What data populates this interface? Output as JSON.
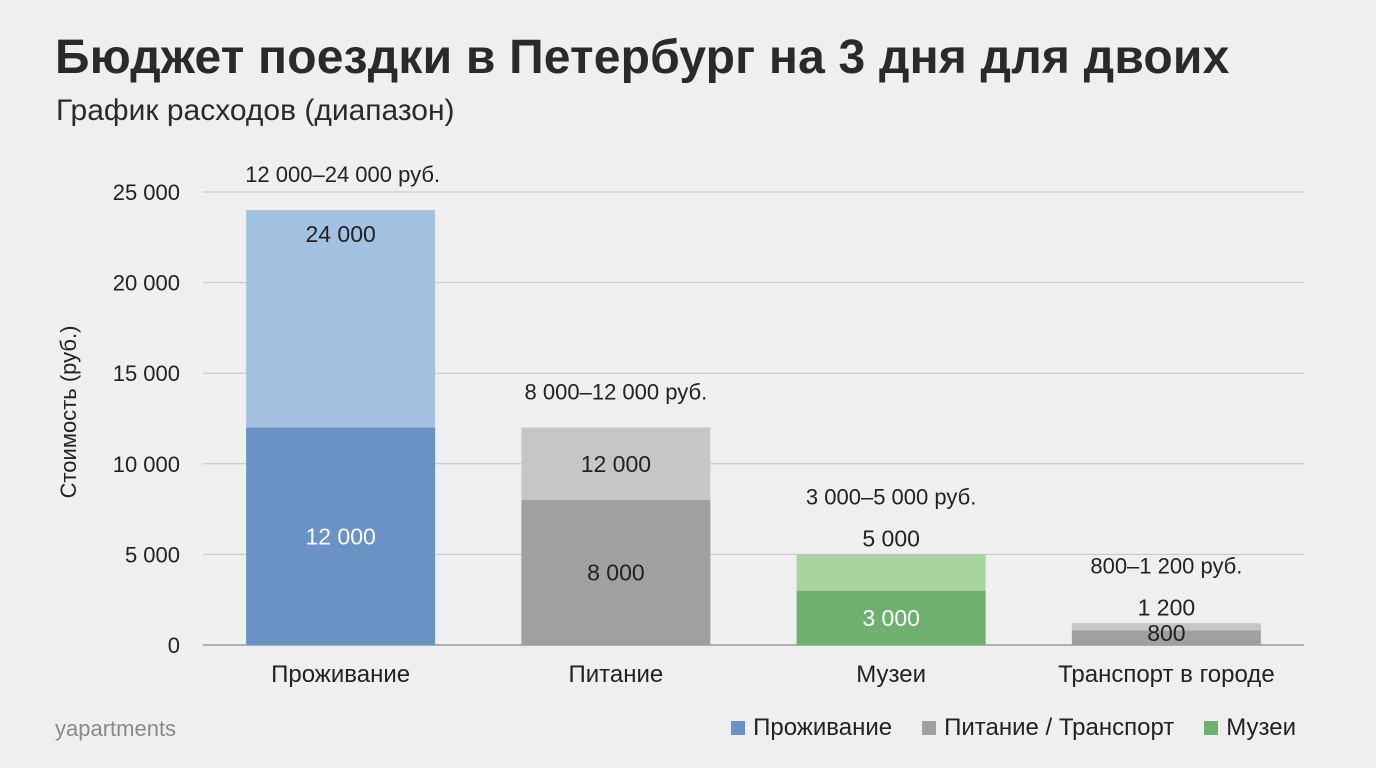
{
  "header": {
    "title": "Бюджет поездки в Петербург на 3 дня для двоих",
    "subtitle": "График расходов (диапазон)"
  },
  "brand": "yapartments",
  "chart_data": {
    "type": "bar",
    "stacked": true,
    "categories": [
      "Проживание",
      "Питание",
      "Музеи",
      "Транспорт в городе"
    ],
    "min_values": [
      12000,
      8000,
      3000,
      800
    ],
    "max_values": [
      24000,
      12000,
      5000,
      1200
    ],
    "min_labels": [
      "12 000",
      "8 000",
      "3 000",
      "800"
    ],
    "max_labels": [
      "24 000",
      "12 000",
      "5 000",
      "1 200"
    ],
    "range_labels": [
      "12 000–24 000 руб.",
      "8 000–12 000 руб.",
      "3 000–5 000 руб.",
      "800–1 200 руб."
    ],
    "ylabel": "Стоимость (руб.)",
    "ylim": [
      0,
      25000
    ],
    "yticks": [
      0,
      5000,
      10000,
      15000,
      20000,
      25000
    ],
    "ytick_labels": [
      "0",
      "5 000",
      "10 000",
      "15 000",
      "20 000",
      "25 000"
    ],
    "grid": true,
    "colors_min": [
      "#6a92c4",
      "#a0a0a0",
      "#6fb06f",
      "#a0a0a0"
    ],
    "colors_max": [
      "#a3c1e1",
      "#c6c6c6",
      "#a8d4a0",
      "#c6c6c6"
    ],
    "label_colors_min": [
      "#ffffff",
      "#222222",
      "#ffffff",
      "#222222"
    ],
    "legend": {
      "position": "bottom-right",
      "items": [
        {
          "label": "Проживание",
          "color": "#6a92c4"
        },
        {
          "label": "Питание / Транспорт",
          "color": "#a0a0a0"
        },
        {
          "label": "Музеи",
          "color": "#6fb06f"
        }
      ]
    }
  }
}
